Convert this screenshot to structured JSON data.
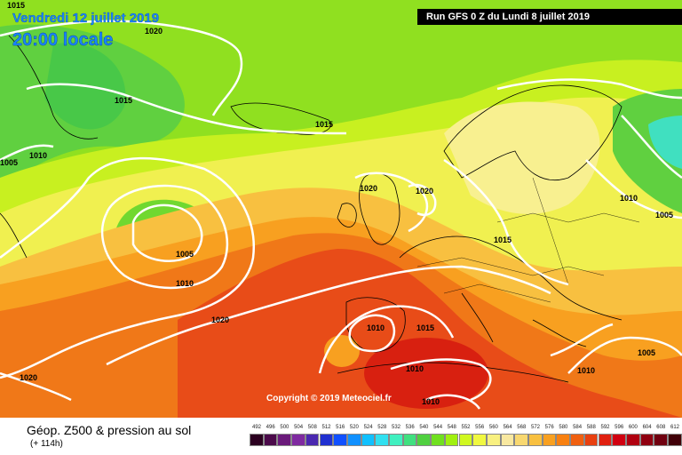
{
  "header": {
    "date": "Vendredi 12 juillet 2019",
    "time": "20:00 locale",
    "run": "Run GFS 0 Z du Lundi 8 juillet 2019"
  },
  "copyright": "Copyright © 2019 Meteociel.fr",
  "footer": {
    "title": "Géop. Z500 & pression au sol",
    "subtitle": "(+ 114h)"
  },
  "isobar_labels": [
    "1015",
    "1020",
    "1015",
    "1005",
    "1010",
    "1015",
    "1020",
    "1020",
    "1005",
    "1010",
    "1020",
    "1015",
    "1010",
    "1005",
    "1010",
    "1015",
    "1010",
    "1010",
    "1010",
    "1005",
    "1020"
  ],
  "scale": {
    "labels": [
      "492",
      "496",
      "500",
      "504",
      "508",
      "512",
      "516",
      "520",
      "524",
      "528",
      "532",
      "536",
      "540",
      "544",
      "548",
      "552",
      "556",
      "560",
      "564",
      "568",
      "572",
      "576",
      "580",
      "584",
      "588",
      "592",
      "596",
      "600",
      "604",
      "608",
      "612"
    ],
    "colors": [
      "#2b0020",
      "#4b0a4a",
      "#6a1a7a",
      "#7f2aa0",
      "#4a28b0",
      "#2030d0",
      "#1050ff",
      "#1090ff",
      "#10c0ff",
      "#30e0f0",
      "#40f0c0",
      "#40e080",
      "#50d040",
      "#70e020",
      "#a0f010",
      "#d0f820",
      "#f0f840",
      "#f8f080",
      "#f8e8a0",
      "#f8d870",
      "#f8c040",
      "#f8a020",
      "#f88010",
      "#f06010",
      "#e84010",
      "#e02010",
      "#d00010",
      "#b00010",
      "#900010",
      "#700010",
      "#400008"
    ]
  }
}
